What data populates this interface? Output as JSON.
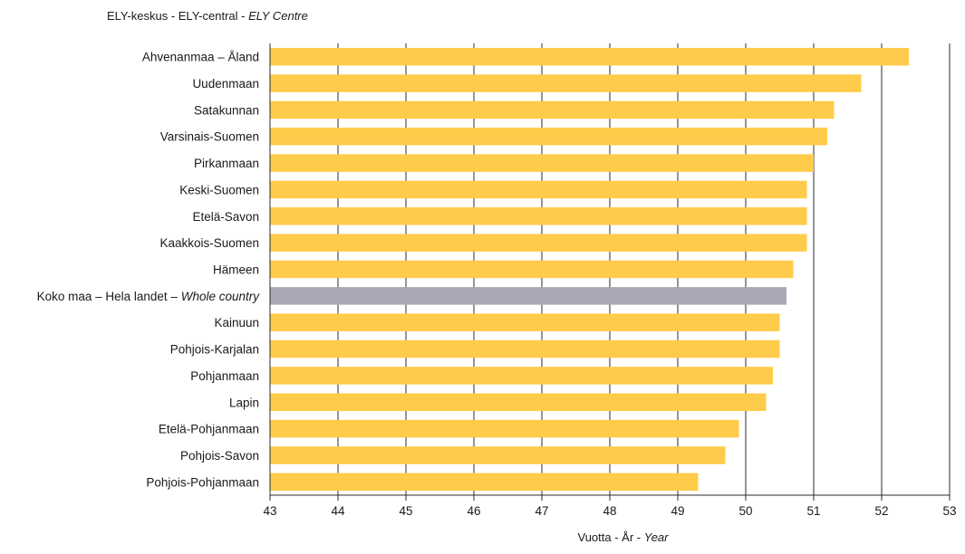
{
  "chart_data": {
    "type": "bar",
    "orientation": "horizontal",
    "category_axis_title": {
      "fi": "ELY-keskus",
      "sv": "ELY-central",
      "en": "ELY Centre",
      "sep": " - "
    },
    "xlabel": {
      "fi": "Vuotta",
      "sv": "År",
      "en": "Year",
      "sep": " - "
    },
    "xlim": [
      43,
      53
    ],
    "xticks": [
      "43",
      "44",
      "45",
      "46",
      "47",
      "48",
      "49",
      "50",
      "51",
      "52",
      "53"
    ],
    "grid": "vertical",
    "colors": {
      "default": "#FFCB4A",
      "highlight": "#A8A9B4"
    },
    "categories": [
      {
        "label": "Ahvenanmaa – Åland",
        "value": 52.4
      },
      {
        "label": "Uudenmaan",
        "value": 51.7
      },
      {
        "label": "Satakunnan",
        "value": 51.3
      },
      {
        "label": "Varsinais-Suomen",
        "value": 51.2
      },
      {
        "label": "Pirkanmaan",
        "value": 51.0
      },
      {
        "label": "Keski-Suomen",
        "value": 50.9
      },
      {
        "label": "Etelä-Savon",
        "value": 50.9
      },
      {
        "label": "Kaakkois-Suomen",
        "value": 50.9
      },
      {
        "label": "Hämeen",
        "value": 50.7
      },
      {
        "label": "Koko maa – Hela landet – ",
        "label_italic": "Whole country",
        "value": 50.6,
        "highlight": true
      },
      {
        "label": "Kainuun",
        "value": 50.5
      },
      {
        "label": "Pohjois-Karjalan",
        "value": 50.5
      },
      {
        "label": "Pohjanmaan",
        "value": 50.4
      },
      {
        "label": "Lapin",
        "value": 50.3
      },
      {
        "label": "Etelä-Pohjanmaan",
        "value": 49.9
      },
      {
        "label": "Pohjois-Savon",
        "value": 49.7
      },
      {
        "label": "Pohjois-Pohjanmaan",
        "value": 49.3
      }
    ]
  }
}
